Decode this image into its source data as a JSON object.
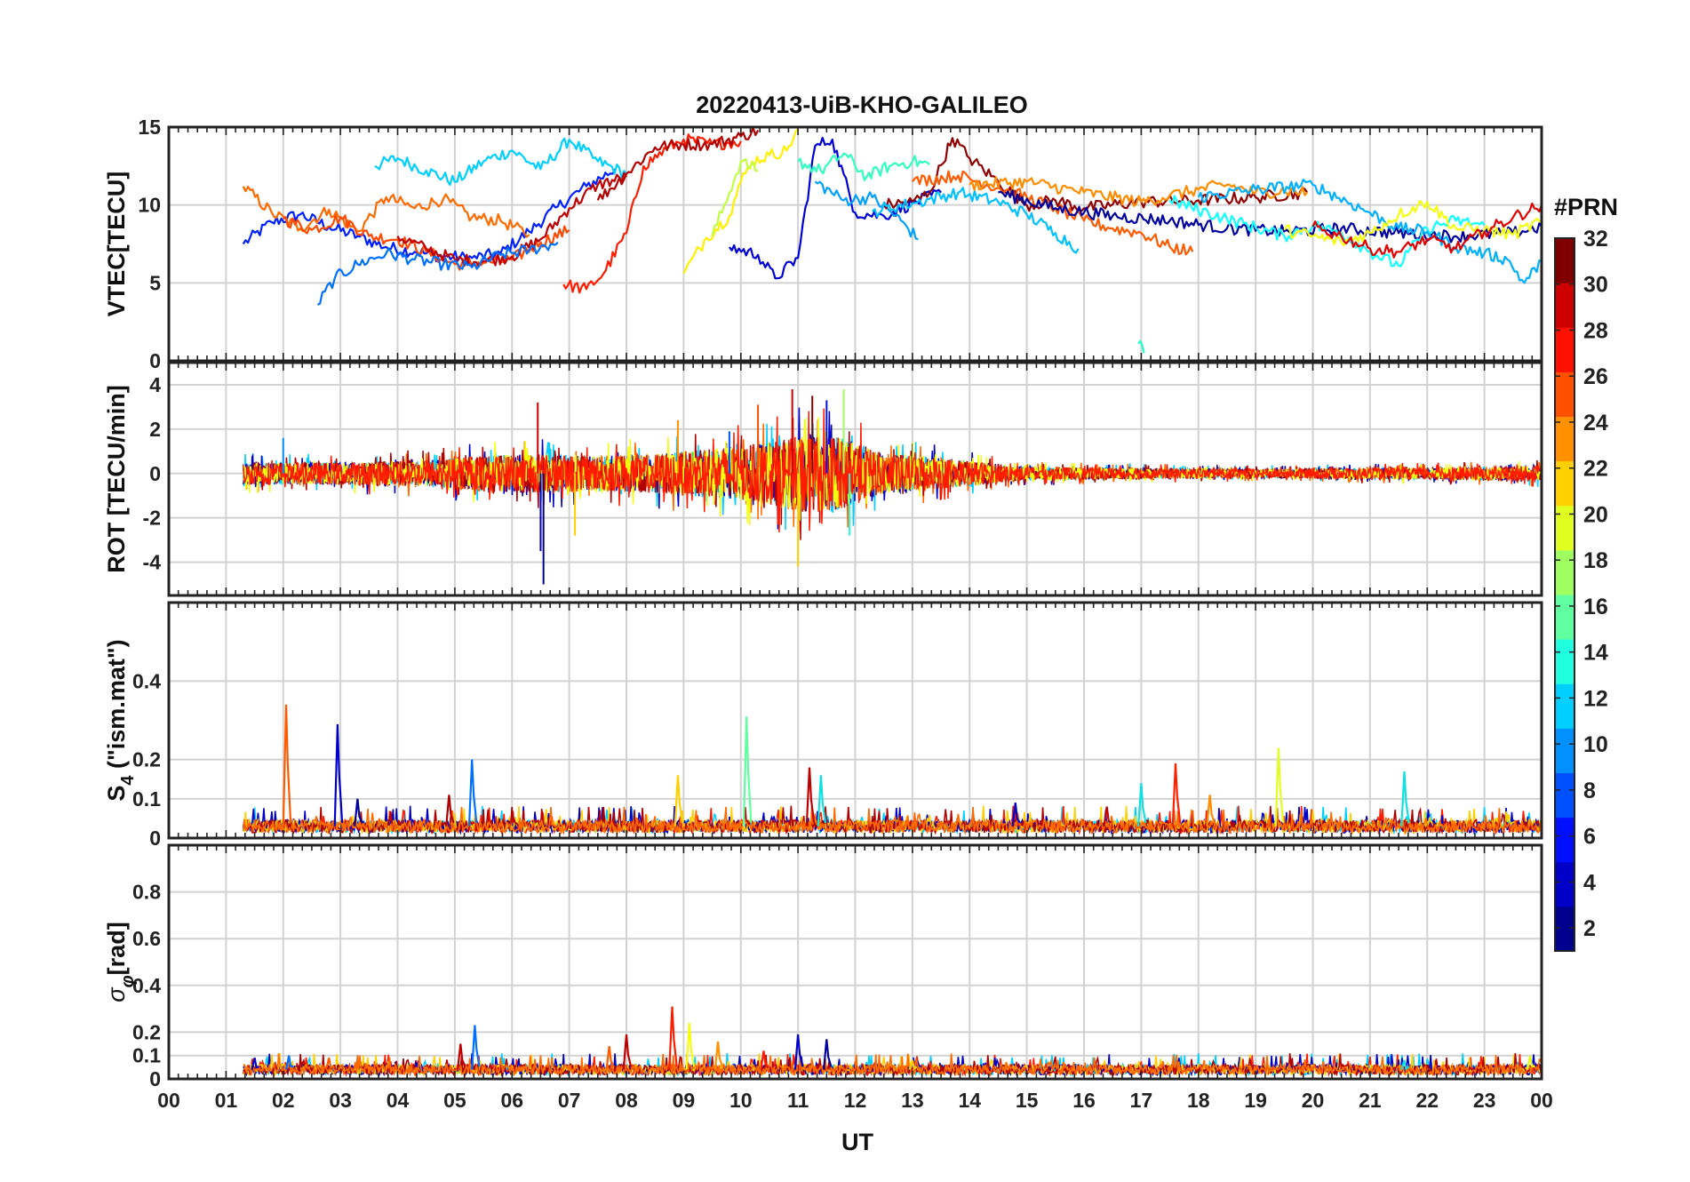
{
  "chart_data": {
    "type": "line",
    "title": "20220413-UiB-KHO-GALILEO",
    "xlabel": "UT",
    "x_ticklabels": [
      "00",
      "01",
      "02",
      "03",
      "04",
      "05",
      "06",
      "07",
      "08",
      "09",
      "10",
      "11",
      "12",
      "13",
      "14",
      "15",
      "16",
      "17",
      "18",
      "19",
      "20",
      "21",
      "22",
      "23",
      "00"
    ],
    "xlim": [
      0,
      24
    ],
    "grid": true,
    "colormap": "jet",
    "colorbar": {
      "label": "#PRN",
      "range": [
        1,
        32
      ],
      "ticks": [
        "2",
        "4",
        "6",
        "8",
        "10",
        "12",
        "14",
        "16",
        "18",
        "20",
        "22",
        "24",
        "26",
        "28",
        "30",
        "32"
      ],
      "colors": [
        "#00008f",
        "#0000c8",
        "#0010ff",
        "#0050ff",
        "#0090ff",
        "#00d0ff",
        "#20ffdf",
        "#60ff9f",
        "#a0ff60",
        "#e0ff20",
        "#ffd000",
        "#ff9000",
        "#ff5000",
        "#ff1000",
        "#cf0000",
        "#800000"
      ]
    },
    "panels": [
      {
        "ylabel": "VTEC[TECU]",
        "ylim": [
          0,
          15
        ],
        "yticks": [
          "0",
          "5",
          "10",
          "15"
        ],
        "series": [
          {
            "prn": 4,
            "color": "#0020ff",
            "x": [
              1.3,
              1.8,
              2.3,
              2.8,
              3.3,
              3.8,
              4.3,
              4.8,
              5.3,
              5.8,
              6.3,
              6.8,
              7.3,
              7.8
            ],
            "y": [
              7.5,
              8.9,
              9.4,
              8.6,
              8.0,
              7.3,
              7.0,
              6.7,
              6.6,
              6.9,
              8.3,
              9.9,
              11.2,
              12.3
            ]
          },
          {
            "prn": 12,
            "color": "#00d0ff",
            "x": [
              3.6,
              4.0,
              4.5,
              5.0,
              5.5,
              6.0,
              6.5,
              7.0,
              7.5,
              8.0
            ],
            "y": [
              12.5,
              13.0,
              12.2,
              11.5,
              12.8,
              13.5,
              12.3,
              14.2,
              12.8,
              12.0
            ]
          },
          {
            "prn": 24,
            "color": "#ff6a00",
            "x": [
              1.3,
              1.8,
              2.3,
              2.8,
              3.3,
              3.8,
              4.3,
              4.8,
              5.3,
              5.8,
              6.3
            ],
            "y": [
              11.2,
              9.5,
              8.5,
              9.7,
              8.3,
              10.5,
              9.8,
              10.4,
              9.2,
              9.0,
              8.1
            ]
          },
          {
            "prn": 26,
            "color": "#ff4800",
            "x": [
              2.0,
              2.5,
              3.0,
              3.5,
              4.0,
              4.5,
              5.0,
              5.5,
              6.0,
              6.5,
              7.0
            ],
            "y": [
              9.1,
              8.4,
              9.2,
              8.0,
              7.8,
              7.0,
              6.2,
              6.3,
              6.5,
              7.6,
              8.4
            ]
          },
          {
            "prn": 30,
            "color": "#c00000",
            "x": [
              4.0,
              4.5,
              5.0,
              5.5,
              6.0,
              6.5,
              7.0,
              7.5,
              8.0
            ],
            "y": [
              8.0,
              7.2,
              6.5,
              6.4,
              6.7,
              7.8,
              9.8,
              11.3,
              11.8
            ]
          },
          {
            "prn": 7,
            "color": "#0070ff",
            "x": [
              2.6,
              2.9,
              3.3,
              3.8,
              4.3,
              4.8,
              5.3,
              5.8,
              6.3,
              6.8
            ],
            "y": [
              3.6,
              5.3,
              6.2,
              6.9,
              6.5,
              6.2,
              6.0,
              6.8,
              7.1,
              7.6
            ]
          },
          {
            "prn": 28,
            "color": "#ff1c00",
            "x": [
              6.9,
              7.3,
              7.6,
              8.0,
              8.3,
              8.7,
              9.0,
              9.5,
              10.0
            ],
            "y": [
              4.9,
              4.6,
              5.6,
              8.2,
              12.5,
              13.6,
              14.2,
              13.9,
              14.1
            ]
          },
          {
            "prn": 31,
            "color": "#b00000",
            "x": [
              7.5,
              8.0,
              8.5,
              9.0,
              9.5,
              10.0,
              10.3
            ],
            "y": [
              10.3,
              12.0,
              13.7,
              13.9,
              13.9,
              14.4,
              14.8
            ]
          },
          {
            "prn": 21,
            "color": "#fff000",
            "x": [
              9.0,
              9.4,
              9.8,
              10.0,
              10.2,
              10.5,
              10.8,
              11.0
            ],
            "y": [
              5.6,
              7.9,
              9.3,
              11.5,
              12.8,
              13.2,
              13.5,
              14.9
            ]
          },
          {
            "prn": 19,
            "color": "#c0ff40",
            "x": [
              9.5,
              9.8,
              10.0,
              10.3
            ],
            "y": [
              8.0,
              10.8,
              12.8,
              12.2
            ]
          },
          {
            "prn": 3,
            "color": "#0000d8",
            "x": [
              9.8,
              10.3,
              10.6,
              11.0,
              11.3,
              11.6,
              12.0,
              12.5,
              13.0,
              13.5
            ],
            "y": [
              7.3,
              6.8,
              5.3,
              6.6,
              13.8,
              14.2,
              9.5,
              9.3,
              10.1,
              10.8
            ]
          },
          {
            "prn": 14,
            "color": "#30ffc0",
            "x": [
              11.0,
              11.4,
              11.8,
              12.2,
              12.6,
              13.0,
              13.3
            ],
            "y": [
              12.8,
              12.2,
              13.3,
              11.8,
              12.5,
              12.8,
              12.6
            ]
          },
          {
            "prn": 9,
            "color": "#00a0ff",
            "x": [
              11.3,
              11.8,
              12.3,
              12.8,
              13.1
            ],
            "y": [
              11.5,
              10.3,
              10.5,
              9.0,
              7.8
            ]
          },
          {
            "prn": 32,
            "color": "#900000",
            "x": [
              12.5,
              13.0,
              13.3,
              13.7,
              14.0,
              14.5,
              15.0,
              15.5,
              16.0,
              17.0,
              18.0,
              19.0,
              19.9
            ],
            "y": [
              10.0,
              10.2,
              10.8,
              14.3,
              13.0,
              11.5,
              10.0,
              10.3,
              9.8,
              10.2,
              10.3,
              10.5,
              10.8
            ]
          },
          {
            "prn": 11,
            "color": "#00c0ff",
            "x": [
              12.3,
              13.0,
              13.8,
              14.5,
              15.0,
              15.5,
              15.9
            ],
            "y": [
              9.6,
              10.1,
              10.8,
              10.2,
              9.4,
              8.2,
              7.2
            ]
          },
          {
            "prn": 25,
            "color": "#ff5a00",
            "x": [
              13.0,
              13.8,
              14.5,
              15.0,
              15.5,
              16.0,
              16.5,
              17.0,
              17.5,
              17.9
            ],
            "y": [
              11.5,
              11.9,
              11.1,
              10.5,
              9.8,
              9.0,
              8.5,
              8.2,
              7.3,
              7.0
            ]
          },
          {
            "prn": 23,
            "color": "#ff8c00",
            "x": [
              14.0,
              15.0,
              16.0,
              17.0,
              17.5,
              18.0,
              18.5,
              19.0,
              19.5,
              19.9
            ],
            "y": [
              11.3,
              11.5,
              10.8,
              10.2,
              10.6,
              11.0,
              11.3,
              10.8,
              10.9,
              10.8
            ]
          },
          {
            "prn": 2,
            "color": "#0000a0",
            "x": [
              14.5,
              15.5,
              16.5,
              17.5,
              18.5,
              19.5,
              20.5,
              21.5,
              22.5,
              23.5,
              24.0
            ],
            "y": [
              10.8,
              9.8,
              9.3,
              9.0,
              8.5,
              8.3,
              8.5,
              8.2,
              8.0,
              8.2,
              8.6
            ]
          },
          {
            "prn": 13,
            "color": "#10ffff",
            "x": [
              17.5,
              18.5,
              19.5,
              20.0,
              20.5,
              21.0,
              21.5,
              22.0,
              22.5,
              23.0
            ],
            "y": [
              10.3,
              9.1,
              8.0,
              8.7,
              8.2,
              7.0,
              6.1,
              8.5,
              9.0,
              8.7
            ]
          },
          {
            "prn": 10,
            "color": "#00b0ff",
            "x": [
              18.0,
              19.0,
              20.0,
              21.0,
              21.5,
              22.0,
              22.5,
              23.0,
              23.4,
              23.7,
              24.0
            ],
            "y": [
              10.5,
              11.0,
              11.3,
              9.5,
              8.5,
              8.3,
              7.3,
              6.9,
              6.5,
              5.0,
              6.4
            ]
          },
          {
            "prn": 20,
            "color": "#f4ff10",
            "x": [
              19.5,
              20.0,
              20.5,
              21.0,
              21.5,
              22.0,
              22.5,
              23.0,
              23.5,
              24.0
            ],
            "y": [
              8.4,
              8.0,
              7.6,
              8.2,
              9.4,
              10.2,
              8.5,
              8.4,
              8.1,
              9.0
            ]
          },
          {
            "prn": 29,
            "color": "#e00000",
            "x": [
              20.0,
              20.5,
              21.0,
              21.5,
              22.0,
              22.5,
              23.0,
              23.5,
              24.0
            ],
            "y": [
              8.6,
              8.0,
              7.2,
              7.0,
              7.8,
              7.2,
              8.3,
              9.2,
              10.0
            ]
          },
          {
            "prn": 13,
            "color": "#20ffd0",
            "x": [
              16.95,
              17.05
            ],
            "y": [
              1.1,
              0.5
            ]
          }
        ]
      },
      {
        "ylabel": "ROT [TECU/min]",
        "ylim": [
          -5.5,
          5
        ],
        "yticks": [
          "-4",
          "-2",
          "0",
          "2",
          "4"
        ],
        "envelope": {
          "hours": [
            1.3,
            3,
            4.5,
            5.5,
            6.5,
            7.5,
            8.5,
            9.5,
            10.5,
            11.2,
            11.8,
            12.5,
            13.5,
            15,
            17,
            19,
            21,
            23,
            24
          ],
          "amplitude": [
            0.5,
            0.5,
            0.6,
            0.8,
            0.9,
            0.8,
            0.9,
            1.1,
            1.4,
            1.8,
            1.6,
            0.9,
            0.7,
            0.3,
            0.25,
            0.2,
            0.25,
            0.3,
            0.35
          ]
        },
        "spikes": [
          {
            "x": 6.45,
            "y": 3.2
          },
          {
            "x": 6.5,
            "y": -3.5
          },
          {
            "x": 6.55,
            "y": -5.0
          },
          {
            "x": 7.1,
            "y": -2.8
          },
          {
            "x": 10.3,
            "y": 3.1
          },
          {
            "x": 10.9,
            "y": 3.8
          },
          {
            "x": 11.0,
            "y": -4.2
          },
          {
            "x": 11.25,
            "y": 3.5
          },
          {
            "x": 11.5,
            "y": 3.3
          },
          {
            "x": 11.8,
            "y": 3.8
          },
          {
            "x": 11.9,
            "y": -2.8
          },
          {
            "x": 2.0,
            "y": 1.6
          },
          {
            "x": 8.9,
            "y": 2.4
          },
          {
            "x": 9.8,
            "y": 1.9
          }
        ]
      },
      {
        "ylabel": "S₄ (\"ism.mat\")",
        "ylim": [
          0,
          0.6
        ],
        "yticks": [
          "0",
          "0.1",
          "0.2",
          "0.4"
        ],
        "baseline": 0.03,
        "spikes": [
          {
            "x": 2.05,
            "y": 0.34,
            "color": "#ff5a00"
          },
          {
            "x": 2.95,
            "y": 0.29,
            "color": "#0000c8"
          },
          {
            "x": 5.3,
            "y": 0.2,
            "color": "#0070ff"
          },
          {
            "x": 4.9,
            "y": 0.11,
            "color": "#b00000"
          },
          {
            "x": 10.1,
            "y": 0.31,
            "color": "#60ff9f"
          },
          {
            "x": 11.2,
            "y": 0.18,
            "color": "#c00000"
          },
          {
            "x": 11.4,
            "y": 0.16,
            "color": "#10e0e0"
          },
          {
            "x": 17.6,
            "y": 0.19,
            "color": "#ff2000"
          },
          {
            "x": 17.0,
            "y": 0.14,
            "color": "#10e0e0"
          },
          {
            "x": 19.4,
            "y": 0.23,
            "color": "#e0ff20"
          },
          {
            "x": 21.6,
            "y": 0.17,
            "color": "#10e0e0"
          },
          {
            "x": 8.9,
            "y": 0.16,
            "color": "#ffd000"
          },
          {
            "x": 3.3,
            "y": 0.1,
            "color": "#0000a0"
          },
          {
            "x": 14.8,
            "y": 0.09,
            "color": "#0000c8"
          },
          {
            "x": 18.2,
            "y": 0.11,
            "color": "#ff8c00"
          },
          {
            "x": 16.4,
            "y": 0.08,
            "color": "#c00000"
          }
        ]
      },
      {
        "ylabel": "σφ[rad]",
        "ylim": [
          0,
          1
        ],
        "yticks": [
          "0",
          "0.1",
          "0.2",
          "0.4",
          "0.6",
          "0.8"
        ],
        "baseline": 0.04,
        "spikes": [
          {
            "x": 5.35,
            "y": 0.23,
            "color": "#0070ff"
          },
          {
            "x": 5.1,
            "y": 0.15,
            "color": "#c00000"
          },
          {
            "x": 8.8,
            "y": 0.31,
            "color": "#ff1c00"
          },
          {
            "x": 9.1,
            "y": 0.24,
            "color": "#f4ff10"
          },
          {
            "x": 8.0,
            "y": 0.19,
            "color": "#c00000"
          },
          {
            "x": 7.7,
            "y": 0.14,
            "color": "#ff5a00"
          },
          {
            "x": 11.0,
            "y": 0.19,
            "color": "#0000c8"
          },
          {
            "x": 11.5,
            "y": 0.17,
            "color": "#0000a0"
          },
          {
            "x": 9.6,
            "y": 0.16,
            "color": "#ff9000"
          },
          {
            "x": 10.4,
            "y": 0.12,
            "color": "#ff1c00"
          },
          {
            "x": 1.5,
            "y": 0.09,
            "color": "#0000c8"
          },
          {
            "x": 2.1,
            "y": 0.1,
            "color": "#0070ff"
          },
          {
            "x": 2.8,
            "y": 0.09,
            "color": "#ff5a00"
          },
          {
            "x": 13.0,
            "y": 0.08,
            "color": "#ffd000"
          },
          {
            "x": 21.6,
            "y": 0.08,
            "color": "#10e0e0"
          },
          {
            "x": 23.8,
            "y": 0.1,
            "color": "#e0ff20"
          }
        ]
      }
    ]
  }
}
